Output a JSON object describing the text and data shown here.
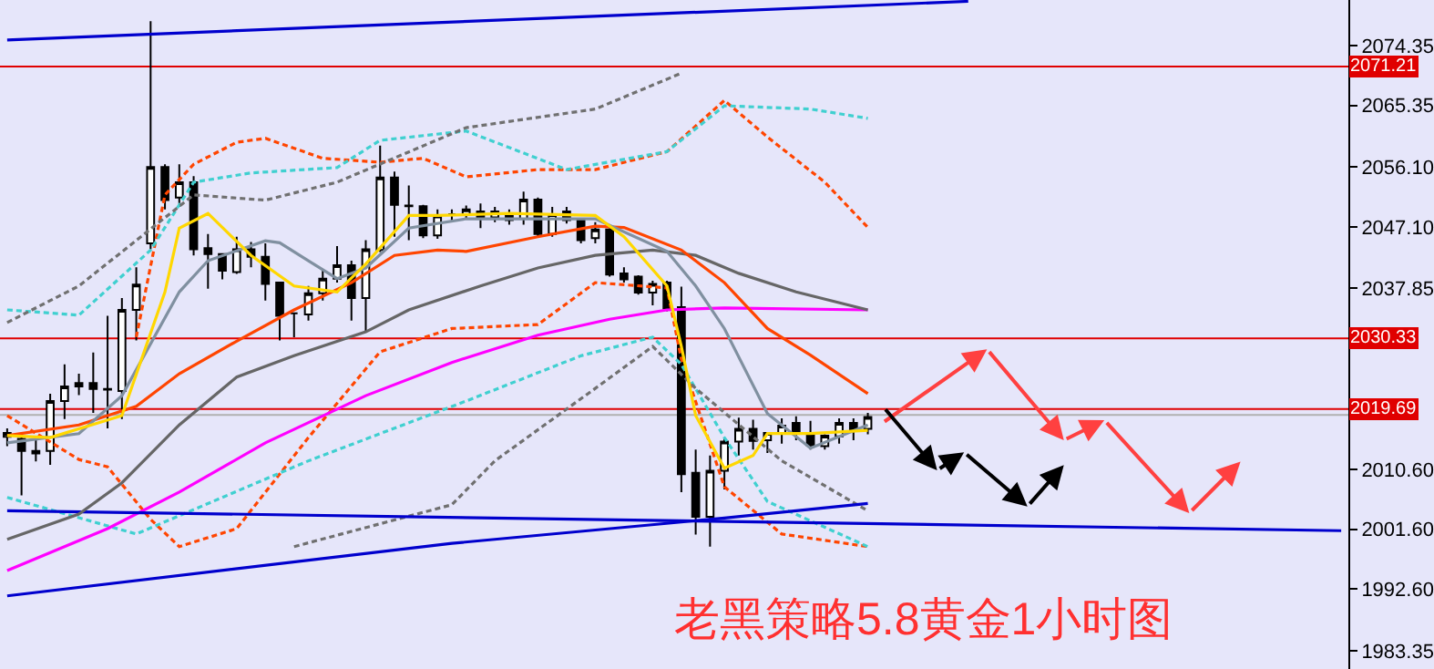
{
  "chart_data": {
    "type": "candlestick",
    "color": "#000000",
    "categories": [
      null,
      null,
      null,
      null,
      null,
      null,
      null,
      null,
      null,
      null,
      null,
      null,
      null,
      null,
      null,
      null,
      null,
      null,
      null,
      null,
      null,
      null,
      null,
      null,
      null,
      null,
      null,
      null,
      null,
      null,
      null,
      null,
      null,
      null,
      null,
      null,
      null,
      null,
      null,
      null,
      null,
      null,
      null,
      null,
      null,
      null,
      null,
      null,
      null,
      null,
      null,
      null,
      null,
      null,
      null,
      null,
      null,
      null,
      null,
      null,
      null,
      null,
      null,
      null,
      null,
      null,
      null,
      null,
      null,
      null,
      null,
      null,
      null,
      null,
      null,
      null,
      null,
      null,
      null,
      null,
      null,
      null,
      null,
      null,
      null,
      null,
      null,
      null,
      null,
      null,
      null,
      null,
      null,
      null
    ],
    "ohlc": [
      [
        2015.5,
        2016.8,
        2014.1,
        2016.1
      ],
      [
        2015.2,
        2016.1,
        2006.7,
        2013.4
      ],
      [
        2013.4,
        2015.4,
        2011.8,
        2013.0
      ],
      [
        2013.4,
        2022.0,
        2011.3,
        2020.9
      ],
      [
        2020.9,
        2026.4,
        2018.2,
        2023.1
      ],
      [
        2023.1,
        2025.0,
        2021.8,
        2023.6
      ],
      [
        2023.6,
        2028.2,
        2019.1,
        2022.7
      ],
      [
        2022.7,
        2033.7,
        2016.8,
        2022.6
      ],
      [
        2022.4,
        2036.4,
        2018.2,
        2034.6
      ],
      [
        2034.6,
        2041.0,
        2030.0,
        2038.4
      ],
      [
        2044.6,
        2078.0,
        2043.7,
        2056.1
      ],
      [
        2056.1,
        2056.5,
        2049.7,
        2051.1
      ],
      [
        2051.5,
        2056.5,
        2050.1,
        2053.8
      ],
      [
        2053.8,
        2054.7,
        2042.8,
        2043.7
      ],
      [
        2043.9,
        2046.0,
        2037.8,
        2043.0
      ],
      [
        2043.0,
        2043.0,
        2039.2,
        2040.5
      ],
      [
        2040.3,
        2045.6,
        2040.0,
        2043.7
      ],
      [
        2043.7,
        2044.8,
        2041.0,
        2042.6
      ],
      [
        2042.6,
        2044.6,
        2036.0,
        2038.5
      ],
      [
        2038.7,
        2038.7,
        2030.0,
        2033.7
      ],
      [
        2034.1,
        2034.2,
        2030.5,
        2034.1
      ],
      [
        2033.9,
        2038.2,
        2033.0,
        2037.1
      ],
      [
        2037.1,
        2040.5,
        2036.0,
        2039.3
      ],
      [
        2039.3,
        2044.2,
        2038.7,
        2041.3
      ],
      [
        2041.3,
        2042.0,
        2033.0,
        2036.4
      ],
      [
        2036.4,
        2045.1,
        2031.4,
        2043.7
      ],
      [
        2043.6,
        2059.3,
        2043.3,
        2054.5
      ],
      [
        2054.5,
        2055.4,
        2045.6,
        2050.4
      ],
      [
        2050.3,
        2053.3,
        2045.1,
        2050.2
      ],
      [
        2050.2,
        2050.4,
        2045.4,
        2045.8
      ],
      [
        2045.8,
        2049.7,
        2045.3,
        2048.8
      ],
      [
        2049.0,
        2049.7,
        2047.9,
        2049.0
      ],
      [
        2049.0,
        2050.3,
        2048.3,
        2049.7
      ],
      [
        2049.4,
        2050.6,
        2046.9,
        2048.3
      ],
      [
        2048.5,
        2050.1,
        2047.8,
        2049.4
      ],
      [
        2049.0,
        2049.7,
        2047.4,
        2048.1
      ],
      [
        2048.3,
        2052.4,
        2047.4,
        2051.2
      ],
      [
        2051.2,
        2051.5,
        2045.6,
        2046.0
      ],
      [
        2046.0,
        2050.1,
        2045.6,
        2049.0
      ],
      [
        2049.4,
        2050.1,
        2047.6,
        2048.1
      ],
      [
        2048.1,
        2048.3,
        2044.6,
        2045.1
      ],
      [
        2045.4,
        2047.8,
        2044.6,
        2046.7
      ],
      [
        2046.7,
        2046.9,
        2039.6,
        2039.9
      ],
      [
        2040.1,
        2041.0,
        2038.7,
        2039.2
      ],
      [
        2039.6,
        2039.8,
        2036.9,
        2037.2
      ],
      [
        2037.2,
        2039.0,
        2035.3,
        2038.5
      ],
      [
        2038.7,
        2039.0,
        2034.4,
        2034.8
      ],
      [
        2035.0,
        2038.1,
        2007.2,
        2009.9
      ],
      [
        2010.1,
        2013.6,
        2000.8,
        2003.5
      ],
      [
        2003.5,
        2012.7,
        1999.0,
        2010.4
      ],
      [
        2010.4,
        2015.4,
        2007.6,
        2014.8
      ],
      [
        2014.8,
        2018.4,
        2012.7,
        2016.7
      ],
      [
        2016.7,
        2018.1,
        2013.6,
        2014.9
      ],
      [
        2015.0,
        2016.2,
        2013.1,
        2016.1
      ],
      [
        2016.1,
        2018.3,
        2014.5,
        2017.2
      ],
      [
        2017.6,
        2018.6,
        2015.0,
        2016.1
      ],
      [
        2015.9,
        2017.9,
        2013.6,
        2014.2
      ],
      [
        2014.1,
        2015.9,
        2013.6,
        2015.7
      ],
      [
        2015.6,
        2018.3,
        2014.5,
        2017.6
      ],
      [
        2017.6,
        2018.3,
        2015.0,
        2016.5
      ],
      [
        2016.7,
        2019.1,
        2015.9,
        2018.5
      ],
      null,
      null,
      null,
      null,
      null,
      null,
      null,
      null,
      null,
      null,
      null,
      null,
      null,
      null,
      null,
      null,
      null,
      null,
      null,
      null,
      null,
      null,
      null,
      null,
      null,
      null,
      null,
      null,
      null,
      null,
      null,
      null,
      null
    ],
    "series": [
      {
        "type": "line",
        "color": "#ff4500",
        "line_style": "dashed",
        "values": [
          2018.7,
          null,
          null,
          null,
          null,
          2012.1,
          null,
          2011.0,
          null,
          null,
          2003.1,
          null,
          1999.0,
          null,
          null,
          null,
          2001.7,
          null,
          null,
          null,
          null,
          2015.4,
          null,
          null,
          null,
          null,
          2028.3,
          null,
          null,
          null,
          null,
          2031.8,
          null,
          null,
          null,
          null,
          null,
          2032.4,
          null,
          null,
          null,
          2038.7,
          null,
          null,
          null,
          null,
          2037.9,
          2027.2,
          null,
          null,
          2008.0,
          null,
          null,
          null,
          2000.9,
          null,
          null,
          null,
          null,
          null,
          1999.0,
          null,
          null,
          null,
          null,
          null,
          null,
          null,
          null,
          null,
          null,
          null,
          null,
          null,
          null,
          null,
          null,
          null,
          null,
          null,
          null,
          null,
          null,
          null,
          null,
          null,
          null,
          null,
          null,
          null,
          null,
          null,
          null,
          null
        ]
      },
      {
        "type": "line",
        "color": "#ff4500",
        "line_style": "dashed",
        "values": [
          null,
          null,
          null,
          null,
          null,
          null,
          null,
          null,
          null,
          2030.5,
          null,
          2051.9,
          null,
          2056.5,
          null,
          null,
          2059.8,
          null,
          2060.4,
          null,
          null,
          null,
          2057.4,
          null,
          null,
          null,
          2056.8,
          null,
          null,
          2057.4,
          null,
          null,
          2054.6,
          null,
          null,
          null,
          null,
          2055.7,
          null,
          null,
          null,
          2055.7,
          null,
          null,
          null,
          null,
          2058.4,
          null,
          null,
          null,
          2066.1,
          null,
          null,
          2060.6,
          null,
          null,
          null,
          2053.8,
          null,
          null,
          2047.0,
          null,
          null,
          null,
          null,
          null,
          null,
          null,
          null,
          null,
          null,
          null,
          null,
          null,
          null,
          null,
          null,
          null,
          null,
          null,
          null,
          null,
          null,
          null,
          null,
          null,
          null,
          null,
          null,
          null,
          null,
          null,
          null,
          null
        ]
      },
      {
        "type": "line",
        "color": "#40d0d0",
        "line_style": "dashed",
        "values": [
          2034.6,
          null,
          null,
          null,
          null,
          2033.8,
          null,
          null,
          null,
          null,
          2043.6,
          null,
          null,
          2053.8,
          null,
          null,
          null,
          2055.2,
          null,
          null,
          null,
          null,
          null,
          2056.0,
          null,
          null,
          2060.1,
          null,
          null,
          null,
          null,
          null,
          2061.5,
          null,
          null,
          null,
          null,
          null,
          null,
          2055.7,
          null,
          null,
          null,
          null,
          null,
          null,
          2058.4,
          null,
          null,
          null,
          2065.3,
          null,
          null,
          null,
          null,
          null,
          2064.8,
          null,
          null,
          null,
          2063.4,
          null,
          null,
          null,
          null,
          null,
          null,
          null,
          null,
          null,
          null,
          null,
          null,
          null,
          null,
          null,
          null,
          null,
          null,
          null,
          null,
          null,
          null,
          null,
          null,
          null,
          null,
          null,
          null,
          null,
          null,
          null,
          null,
          null
        ]
      },
      {
        "type": "line",
        "color": "#40d0d0",
        "line_style": "dashed",
        "values": [
          2006.4,
          null,
          null,
          null,
          null,
          null,
          null,
          null,
          null,
          2000.9,
          null,
          null,
          null,
          null,
          null,
          null,
          null,
          null,
          null,
          null,
          null,
          2011.9,
          null,
          null,
          null,
          null,
          null,
          null,
          null,
          null,
          null,
          null,
          2020.9,
          null,
          null,
          null,
          null,
          null,
          null,
          null,
          2027.7,
          null,
          null,
          null,
          null,
          2030.5,
          null,
          2026.4,
          null,
          null,
          2015.4,
          null,
          null,
          2005.8,
          null,
          null,
          null,
          null,
          null,
          null,
          1999.0,
          null,
          null,
          null,
          null,
          null,
          null,
          null,
          null,
          null,
          null,
          null,
          null,
          null,
          null,
          null,
          null,
          null,
          null,
          null,
          null,
          null,
          null,
          null,
          null,
          null,
          null,
          null,
          null,
          null,
          null,
          null,
          null,
          null
        ]
      },
      {
        "type": "line",
        "color": "#707070",
        "line_style": "dashed",
        "values": [
          2032.7,
          null,
          null,
          null,
          null,
          2038.2,
          null,
          null,
          null,
          null,
          null,
          null,
          null,
          2051.9,
          null,
          null,
          null,
          null,
          2051.1,
          null,
          null,
          null,
          null,
          2053.8,
          null,
          null,
          null,
          null,
          null,
          null,
          null,
          null,
          2062.0,
          null,
          null,
          null,
          null,
          null,
          null,
          null,
          null,
          2064.8,
          null,
          null,
          null,
          null,
          null,
          2070.2,
          null,
          null,
          null,
          null,
          null,
          null,
          null,
          null,
          null,
          null,
          null,
          null,
          null,
          null,
          null,
          null,
          null,
          null,
          null,
          null,
          null,
          null,
          null,
          null,
          null,
          null,
          null,
          null,
          null,
          null,
          null,
          null,
          null,
          null,
          null,
          null,
          null,
          null,
          null,
          null,
          null,
          null,
          null,
          null,
          null,
          null
        ]
      },
      {
        "type": "line",
        "color": "#707070",
        "line_style": "dashed",
        "values": [
          null,
          null,
          null,
          null,
          null,
          null,
          null,
          null,
          null,
          null,
          null,
          null,
          null,
          null,
          null,
          null,
          null,
          null,
          null,
          null,
          1999.0,
          null,
          null,
          null,
          null,
          null,
          null,
          null,
          null,
          null,
          null,
          2005.3,
          null,
          null,
          2011.9,
          null,
          null,
          null,
          null,
          null,
          null,
          2022.8,
          null,
          null,
          null,
          2029.1,
          null,
          null,
          2022.8,
          null,
          null,
          null,
          null,
          null,
          2011.9,
          null,
          null,
          null,
          null,
          null,
          2004.4,
          null,
          null,
          null,
          null,
          null,
          null,
          null,
          null,
          null,
          null,
          null,
          null,
          null,
          null,
          null,
          null,
          null,
          null,
          null,
          null,
          null,
          null,
          null,
          null,
          null,
          null,
          null,
          null,
          null,
          null,
          null,
          null,
          null
        ]
      },
      {
        "type": "line",
        "color": "#ff00ff",
        "line_style": "solid",
        "values": [
          1995.4,
          null,
          null,
          null,
          null,
          null,
          null,
          2001.7,
          null,
          null,
          null,
          null,
          2007.2,
          null,
          null,
          null,
          null,
          null,
          2014.6,
          null,
          null,
          null,
          null,
          null,
          null,
          2021.7,
          null,
          null,
          null,
          null,
          null,
          2026.7,
          null,
          null,
          null,
          null,
          null,
          2030.8,
          null,
          null,
          null,
          null,
          2033.2,
          null,
          null,
          null,
          2034.6,
          null,
          null,
          null,
          2034.9,
          null,
          null,
          null,
          null,
          null,
          null,
          null,
          null,
          null,
          2034.6,
          null,
          null,
          null,
          null,
          null,
          null,
          null,
          null,
          null,
          null,
          null,
          null,
          null,
          null,
          null,
          null,
          null,
          null,
          null,
          null,
          null,
          null,
          null,
          null,
          null,
          null,
          null,
          null,
          null,
          null,
          null,
          null,
          null
        ]
      },
      {
        "type": "line",
        "color": "#0000cd",
        "line_style": "solid",
        "values": [
          1991.6,
          null,
          null,
          null,
          null,
          null,
          null,
          null,
          null,
          null,
          null,
          null,
          null,
          null,
          null,
          null,
          null,
          null,
          null,
          null,
          null,
          null,
          null,
          null,
          null,
          null,
          null,
          null,
          null,
          null,
          null,
          1999.5,
          null,
          null,
          null,
          null,
          null,
          null,
          null,
          null,
          null,
          null,
          null,
          null,
          null,
          null,
          null,
          null,
          null,
          null,
          2003.3,
          null,
          null,
          null,
          null,
          null,
          null,
          null,
          null,
          null,
          2005.5,
          null,
          null,
          null,
          null,
          null,
          null,
          null,
          null,
          null,
          null,
          null,
          null,
          null,
          null,
          null,
          null,
          null,
          null,
          null,
          null,
          null,
          null,
          null,
          null,
          null,
          null,
          null,
          null,
          null,
          null,
          null,
          null,
          null
        ]
      },
      {
        "type": "line",
        "color": "#0000cd",
        "line_style": "solid",
        "values": [
          2004.4,
          null,
          null,
          null,
          null,
          null,
          null,
          null,
          null,
          null,
          null,
          null,
          null,
          null,
          null,
          null,
          null,
          null,
          null,
          null,
          null,
          null,
          null,
          null,
          null,
          null,
          null,
          null,
          null,
          null,
          null,
          null,
          null,
          null,
          null,
          null,
          null,
          null,
          null,
          null,
          null,
          null,
          null,
          null,
          null,
          null,
          null,
          null,
          null,
          null,
          null,
          null,
          null,
          null,
          null,
          null,
          null,
          null,
          null,
          null,
          null,
          null,
          null,
          null,
          null,
          null,
          null,
          null,
          null,
          null,
          null,
          null,
          null,
          null,
          null,
          null,
          null,
          null,
          null,
          null,
          null,
          null,
          null,
          null,
          null,
          null,
          null,
          null,
          null,
          null,
          null,
          null,
          null,
          2001.4
        ]
      },
      {
        "type": "line",
        "color": "#0000cd",
        "line_style": "solid",
        "values": [
          2075.2,
          null,
          null,
          null,
          null,
          null,
          null,
          null,
          null,
          null,
          null,
          null,
          null,
          null,
          null,
          null,
          null,
          null,
          null,
          null,
          null,
          null,
          null,
          null,
          null,
          null,
          null,
          null,
          null,
          null,
          null,
          null,
          null,
          null,
          null,
          null,
          null,
          null,
          null,
          null,
          null,
          null,
          null,
          null,
          null,
          null,
          null,
          null,
          null,
          null,
          null,
          null,
          null,
          null,
          null,
          null,
          null,
          null,
          null,
          null,
          null,
          null,
          null,
          null,
          null,
          null,
          null,
          2081.0,
          null,
          null,
          null,
          null,
          null,
          null,
          null,
          null,
          null,
          null,
          null,
          null,
          null,
          null,
          null,
          null,
          null,
          null,
          null,
          null,
          null,
          null,
          null,
          null,
          null,
          null
        ]
      },
      {
        "type": "line",
        "color": "#666666",
        "line_style": "solid",
        "values": [
          2000.1,
          null,
          null,
          null,
          null,
          2003.9,
          null,
          null,
          2008.6,
          null,
          null,
          null,
          2017.3,
          null,
          null,
          null,
          2024.5,
          null,
          null,
          null,
          2027.7,
          null,
          null,
          null,
          null,
          2031.3,
          null,
          null,
          2034.6,
          null,
          null,
          null,
          null,
          2038.2,
          null,
          null,
          null,
          2040.9,
          null,
          null,
          null,
          2042.8,
          null,
          null,
          null,
          2043.6,
          null,
          null,
          2042.8,
          null,
          null,
          2040.1,
          null,
          null,
          null,
          2037.3,
          null,
          null,
          null,
          null,
          2034.6,
          null,
          null,
          null,
          null,
          null,
          null,
          null,
          null,
          null,
          null,
          null,
          null,
          null,
          null,
          null,
          null,
          null,
          null,
          null,
          null,
          null,
          null,
          null,
          null,
          null,
          null,
          null,
          null,
          null,
          null,
          null,
          null,
          null
        ]
      },
      {
        "type": "line",
        "color": "#ff4500",
        "line_style": "solid",
        "values": [
          2015.7,
          null,
          null,
          null,
          null,
          2017.3,
          null,
          null,
          null,
          2020.1,
          null,
          null,
          2025.0,
          null,
          null,
          null,
          2029.9,
          null,
          null,
          null,
          2034.6,
          null,
          null,
          null,
          2038.7,
          null,
          null,
          2042.8,
          null,
          null,
          2043.6,
          null,
          2043.4,
          null,
          null,
          null,
          null,
          2045.6,
          null,
          null,
          null,
          2047.2,
          null,
          2047.0,
          null,
          null,
          null,
          2043.6,
          null,
          null,
          2038.7,
          null,
          null,
          2031.8,
          null,
          null,
          2027.8,
          null,
          null,
          null,
          2022.0,
          null,
          null,
          null,
          null,
          null,
          null,
          null,
          null,
          null,
          null,
          null,
          null,
          null,
          null,
          null,
          null,
          null,
          null,
          null,
          null,
          null,
          null,
          null,
          null,
          null,
          null,
          null,
          null,
          null,
          null,
          null,
          null,
          null
        ]
      },
      {
        "type": "line",
        "color": "#8090a0",
        "line_style": "solid",
        "values": [
          2014.6,
          null,
          null,
          null,
          null,
          2016.0,
          null,
          null,
          2021.7,
          null,
          null,
          null,
          2037.3,
          null,
          2042.0,
          null,
          null,
          null,
          2045.0,
          2044.7,
          null,
          2042.0,
          null,
          2039.3,
          null,
          2040.9,
          null,
          null,
          2046.9,
          null,
          null,
          null,
          2048.3,
          null,
          null,
          null,
          null,
          null,
          null,
          null,
          null,
          2048.3,
          null,
          null,
          null,
          null,
          2043.4,
          null,
          2038.2,
          null,
          2031.8,
          null,
          null,
          2019.0,
          null,
          null,
          2013.8,
          null,
          null,
          null,
          2017.3,
          null,
          null,
          null,
          null,
          null,
          null,
          null,
          null,
          null,
          null,
          null,
          null,
          null,
          null,
          null,
          null,
          null,
          null,
          null,
          null,
          null,
          null,
          null,
          null,
          null,
          null,
          null,
          null,
          null,
          null,
          null,
          null,
          null
        ]
      },
      {
        "type": "line",
        "color": "#ffd700",
        "line_style": "solid",
        "values": [
          2015.7,
          null,
          null,
          2015.4,
          null,
          null,
          null,
          null,
          2018.7,
          null,
          null,
          2037.3,
          2046.9,
          null,
          2049.1,
          null,
          null,
          2042.8,
          null,
          null,
          2038.2,
          null,
          null,
          2037.3,
          null,
          2041.5,
          null,
          null,
          2048.8,
          null,
          2048.8,
          null,
          null,
          null,
          null,
          2049.1,
          null,
          null,
          null,
          null,
          null,
          2048.8,
          null,
          2045.6,
          null,
          null,
          2038.2,
          2029.1,
          2018.7,
          null,
          2010.8,
          null,
          2012.7,
          2016.0,
          null,
          null,
          2016.0,
          null,
          null,
          null,
          2016.5,
          null,
          null,
          null,
          null,
          null,
          null,
          null,
          null,
          null,
          null,
          null,
          null,
          null,
          null,
          null,
          null,
          null,
          null,
          null,
          null,
          null,
          null,
          null,
          null,
          null,
          null,
          null,
          null,
          null,
          null,
          null,
          null,
          null
        ]
      }
    ],
    "ylim": [
      1980.6,
      2081.2
    ],
    "yticks": [
      {
        "value": 2074.35,
        "label": "2074.35"
      },
      {
        "value": 2065.35,
        "label": "2065.35"
      },
      {
        "value": 2056.1,
        "label": "2056.10"
      },
      {
        "value": 2047.1,
        "label": "2047.10"
      },
      {
        "value": 2037.85,
        "label": "2037.85"
      },
      {
        "value": 2028.85,
        "label": null
      },
      {
        "value": 2019.85,
        "label": null
      },
      {
        "value": 2010.6,
        "label": "2010.60"
      },
      {
        "value": 2001.6,
        "label": "2001.60"
      },
      {
        "value": 1992.6,
        "label": "1992.60"
      },
      {
        "value": 1983.35,
        "label": "1983.35"
      }
    ],
    "tick_labels": "y",
    "grid": false,
    "ref_lines": [
      {
        "axis": "y",
        "value": 2071.21,
        "label": "2071.21",
        "color": "#e00000"
      },
      {
        "axis": "y",
        "value": 2030.33,
        "label": "2030.33",
        "color": "#e00000"
      },
      {
        "axis": "y",
        "value": 2019.69,
        "label": "2019.69",
        "color": "#e00000"
      },
      {
        "axis": "y",
        "value": 2018.8,
        "color": "#b0b0b0"
      }
    ],
    "annotations": [
      "老黑策略5.8黄金1小时图"
    ]
  }
}
